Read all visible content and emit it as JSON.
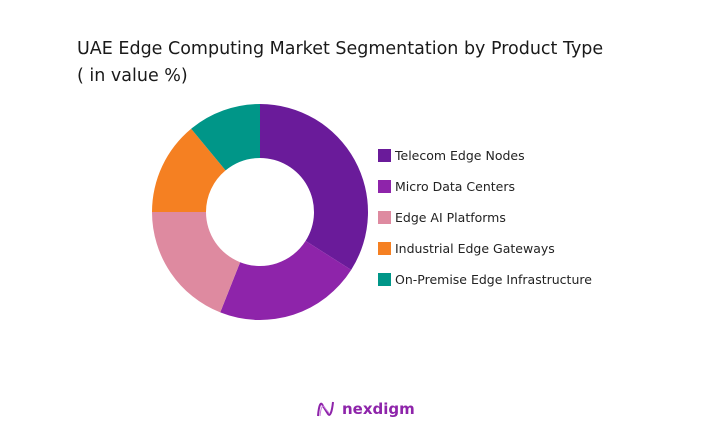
{
  "chart_data": {
    "type": "pie",
    "donut": true,
    "title": "UAE Edge Computing Market Segmentation by Product Type",
    "subtitle": "( in value %)",
    "categories": [
      "Telecom Edge Nodes",
      "Micro Data Centers",
      "Edge AI Platforms",
      "Industrial Edge Gateways",
      "On-Premise Edge Infrastructure"
    ],
    "values": [
      34,
      22,
      19,
      14,
      11
    ],
    "colors": [
      "#6A1B9A",
      "#8E24AA",
      "#DE8AA0",
      "#F58022",
      "#009688"
    ],
    "legend_placement": "right"
  },
  "brand": {
    "name": "nexdigm",
    "color": "#8E24AA"
  }
}
